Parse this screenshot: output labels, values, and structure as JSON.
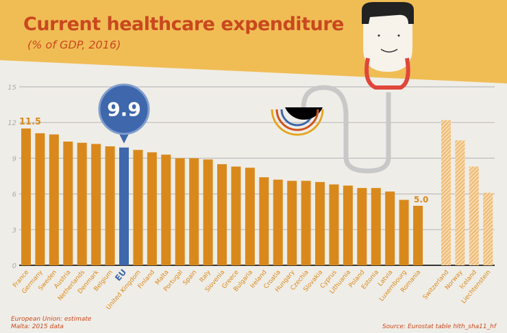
{
  "title": "Current healthcare expenditure",
  "subtitle": "(% of GDP, 2016)",
  "footnotes": [
    "European Union: estimate",
    "Malta: 2015 data"
  ],
  "source": "Source: Eurostat table hlth_sha11_hf",
  "colors": {
    "eu_members": "#d9891c",
    "eu_average": "#3e67ac",
    "non_eu": "#f2c789",
    "title": "#c9481e",
    "banner": "#f0bd55"
  },
  "chart_data": {
    "type": "bar",
    "title": "Current healthcare expenditure",
    "ylabel": "% of GDP",
    "ylim": [
      0,
      15
    ],
    "yticks": [
      0,
      3,
      6,
      9,
      12,
      15
    ],
    "grid": true,
    "categories": [
      "France",
      "Germany",
      "Sweden",
      "Austria",
      "Netherlands",
      "Denmark",
      "Belgium",
      "EU",
      "United Kingdom",
      "Finland",
      "Malta",
      "Portugal",
      "Spain",
      "Italy",
      "Slovenia",
      "Greece",
      "Bulgaria",
      "Ireland",
      "Croatia",
      "Hungary",
      "Czechia",
      "Slovakia",
      "Cyprus",
      "Lithuania",
      "Poland",
      "Estonia",
      "Latvia",
      "Luxembourg",
      "Romania",
      "Switzerland",
      "Norway",
      "Iceland",
      "Liechtenstein"
    ],
    "values": [
      11.5,
      11.1,
      11.0,
      10.4,
      10.3,
      10.2,
      10.0,
      9.9,
      9.7,
      9.5,
      9.3,
      9.0,
      9.0,
      8.9,
      8.5,
      8.3,
      8.2,
      7.4,
      7.2,
      7.1,
      7.1,
      7.0,
      6.8,
      6.7,
      6.5,
      6.5,
      6.2,
      5.5,
      5.0,
      12.2,
      10.5,
      8.3,
      6.1
    ],
    "groups": [
      "eu",
      "eu",
      "eu",
      "eu",
      "eu",
      "eu",
      "eu",
      "avg",
      "eu",
      "eu",
      "eu",
      "eu",
      "eu",
      "eu",
      "eu",
      "eu",
      "eu",
      "eu",
      "eu",
      "eu",
      "eu",
      "eu",
      "eu",
      "eu",
      "eu",
      "eu",
      "eu",
      "eu",
      "eu",
      "non",
      "non",
      "non",
      "non"
    ],
    "data_labels": {
      "France": "11.5",
      "EU": "9.9",
      "Romania": "5.0"
    }
  }
}
